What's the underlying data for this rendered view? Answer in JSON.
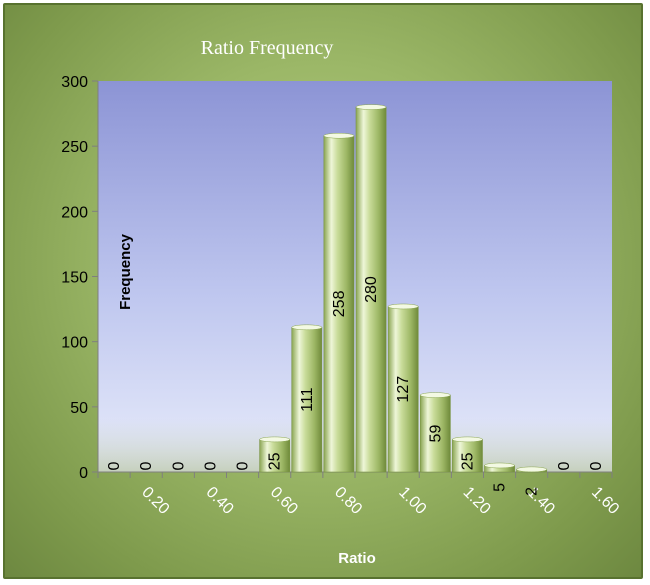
{
  "chart_data": {
    "type": "bar",
    "title": "Ratio Frequency",
    "xlabel": "Ratio",
    "ylabel": "Frequency",
    "ylim": [
      0,
      300
    ],
    "yticks": [
      0,
      50,
      100,
      150,
      200,
      250,
      300
    ],
    "categories": [
      "",
      "0.20",
      "",
      "0.40",
      "",
      "0.60",
      "",
      "0.80",
      "",
      "1.00",
      "",
      "1.20",
      "",
      "1.40",
      "",
      "1.60"
    ],
    "values": [
      0,
      0,
      0,
      0,
      0,
      25,
      111,
      258,
      280,
      127,
      59,
      25,
      5,
      2,
      0,
      0
    ],
    "data_labels": [
      "0",
      "0",
      "0",
      "0",
      "0",
      "25",
      "111",
      "258",
      "280",
      "127",
      "59",
      "25",
      "5",
      "2",
      "0",
      "0"
    ],
    "grid": false,
    "legend": "none",
    "colors": {
      "plot_top": "#8d95d6",
      "plot_bottom": "#e7ebfa",
      "bar_light": "#eef6d8",
      "bar_mid": "#bcd48a",
      "bar_dark": "#6f8a3a"
    }
  }
}
